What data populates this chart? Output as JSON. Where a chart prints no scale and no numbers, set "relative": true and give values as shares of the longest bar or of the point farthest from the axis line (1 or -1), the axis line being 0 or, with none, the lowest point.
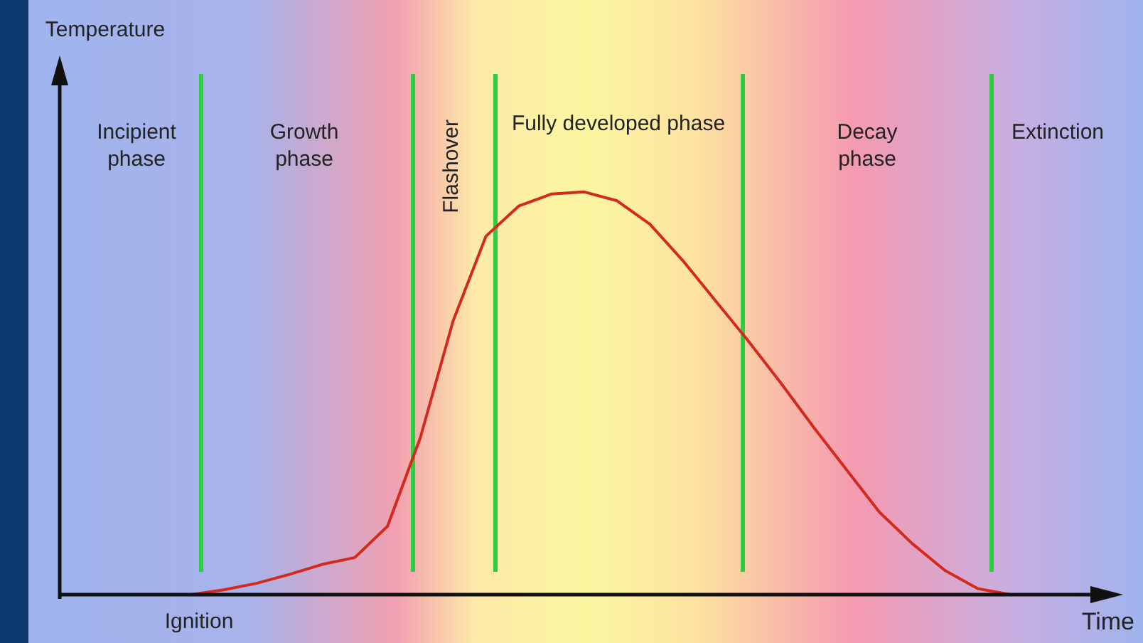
{
  "chart_data": {
    "type": "line",
    "relative": true,
    "xlabel": "Time",
    "legend": false,
    "marker": "none",
    "categories": [
      null,
      null,
      null,
      null,
      null,
      null,
      null,
      null,
      null,
      null,
      null,
      null,
      null,
      null,
      null,
      null,
      null,
      null,
      null,
      null,
      null,
      null,
      null,
      null,
      null,
      null,
      null,
      null,
      null,
      null,
      null,
      null,
      null
    ],
    "series": [
      {
        "color": "#d42a1e",
        "values": [
          null,
          null,
          null,
          null,
          0,
          0.012,
          0.028,
          0.05,
          0.075,
          0.092,
          0.17,
          0.39,
          0.68,
          0.89,
          0.965,
          0.995,
          1,
          0.978,
          0.92,
          0.83,
          0.73,
          0.63,
          0.525,
          0.415,
          0.31,
          0.205,
          0.127,
          0.06,
          0.015,
          0,
          null,
          null,
          null
        ]
      }
    ],
    "annotations": [
      "Incipient phase",
      "Growth phase",
      "Flashover",
      "Fully developed phase",
      "Decay phase",
      "Extinction",
      "Ignition",
      "Temperature"
    ]
  }
}
